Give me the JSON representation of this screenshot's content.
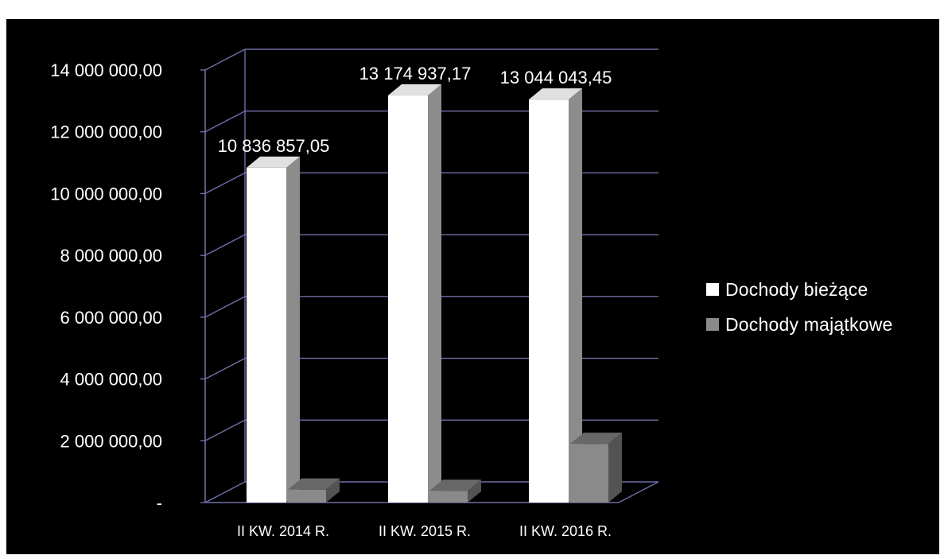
{
  "chart_data": {
    "type": "bar",
    "title": "",
    "xlabel": "",
    "ylabel": "",
    "ylim": [
      0,
      14000000
    ],
    "y_ticks": [
      {
        "value": 0,
        "label": "-"
      },
      {
        "value": 2000000,
        "label": "2 000 000,00"
      },
      {
        "value": 4000000,
        "label": "4 000 000,00"
      },
      {
        "value": 6000000,
        "label": "6 000 000,00"
      },
      {
        "value": 8000000,
        "label": "8 000 000,00"
      },
      {
        "value": 10000000,
        "label": "10 000 000,00"
      },
      {
        "value": 12000000,
        "label": "12 000 000,00"
      },
      {
        "value": 14000000,
        "label": "14 000 000,00"
      }
    ],
    "categories": [
      "II KW. 2014 R.",
      "II KW. 2015 R.",
      "II KW. 2016 R."
    ],
    "series": [
      {
        "name": "Dochody bieżące",
        "color": "#ffffff",
        "values": [
          10836857.05,
          13174937.17,
          13044043.45
        ],
        "data_labels": [
          "10 836 857,05",
          "13 174 937,17",
          "13 044 043,45"
        ]
      },
      {
        "name": "Dochody majątkowe",
        "color": "#8a8a8a",
        "values": [
          420000,
          380000,
          1900000
        ],
        "data_labels": []
      }
    ],
    "grid": true,
    "legend_position": "right",
    "style": "3d-column"
  },
  "colors": {
    "background": "#000000",
    "grid": "#6f6fa8",
    "text": "#ffffff"
  }
}
